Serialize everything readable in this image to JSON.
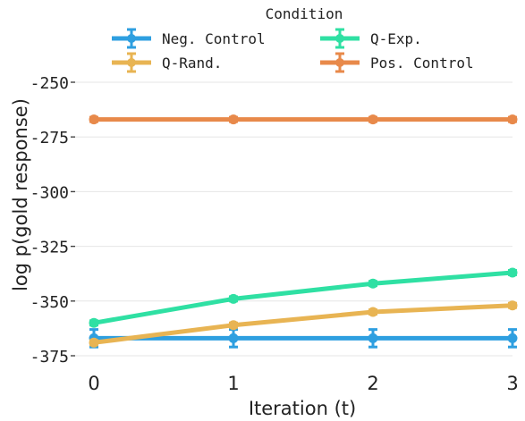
{
  "chart_data": {
    "type": "line",
    "title": "",
    "xlabel": "Iteration (t)",
    "ylabel": "log p(gold response)",
    "x": [
      0,
      1,
      2,
      3
    ],
    "xticks": [
      "0",
      "1",
      "2",
      "3"
    ],
    "yticks": [
      "-250",
      "-275",
      "-300",
      "-325",
      "-350",
      "-375"
    ],
    "ylim": [
      -379,
      -241
    ],
    "grid": "horizontal",
    "legend": {
      "title": "Condition",
      "placement": "top",
      "columns": 2
    },
    "series": [
      {
        "name": "Neg. Control",
        "color": "#2e9fe0",
        "marker": "circle",
        "values": [
          -367,
          -367,
          -367,
          -367
        ],
        "error": [
          4,
          4,
          4,
          4
        ]
      },
      {
        "name": "Q-Exp.",
        "color": "#2fe0a3",
        "marker": "circle",
        "values": [
          -360,
          -349,
          -342,
          -337
        ],
        "error": [
          1,
          1,
          1,
          1
        ]
      },
      {
        "name": "Q-Rand.",
        "color": "#e8b453",
        "marker": "circle",
        "values": [
          -369,
          -361,
          -355,
          -352
        ],
        "error": [
          1,
          1,
          1,
          1
        ]
      },
      {
        "name": "Pos. Control",
        "color": "#e8894a",
        "marker": "circle",
        "values": [
          -267,
          -267,
          -267,
          -267
        ],
        "error": [
          1,
          1,
          1,
          1
        ]
      }
    ]
  }
}
